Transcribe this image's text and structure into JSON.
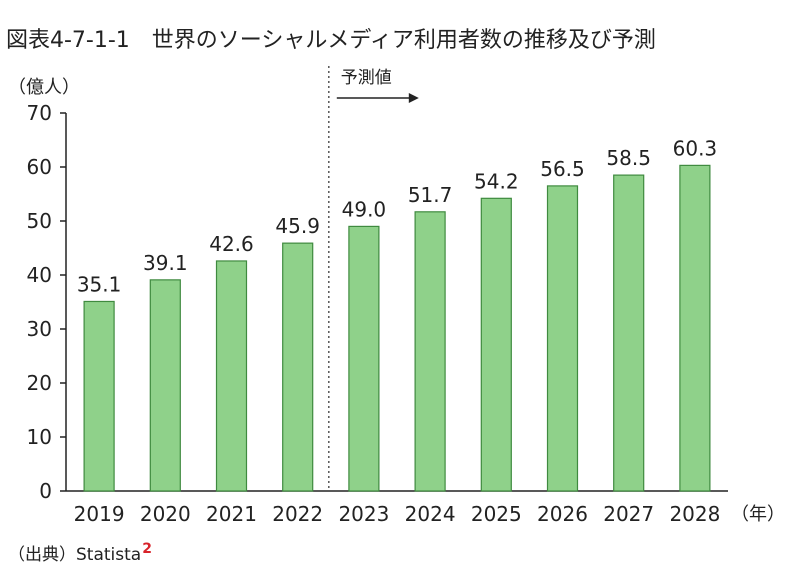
{
  "title": "図表4-7-1-1　世界のソーシャルメディア利用者数の推移及び予測",
  "source": {
    "label": "（出典）Statista",
    "footnote": "2"
  },
  "colors": {
    "bar_fill": "#8fd18a",
    "bar_stroke": "#3f8a3f",
    "axis": "#222222",
    "text": "#222222",
    "footnote": "#d8232a"
  },
  "chart_data": {
    "type": "bar",
    "categories": [
      "2019",
      "2020",
      "2021",
      "2022",
      "2023",
      "2024",
      "2025",
      "2026",
      "2027",
      "2028"
    ],
    "values": [
      35.1,
      39.1,
      42.6,
      45.9,
      49.0,
      51.7,
      54.2,
      56.5,
      58.5,
      60.3
    ],
    "value_labels": [
      "35.1",
      "39.1",
      "42.6",
      "45.9",
      "49.0",
      "51.7",
      "54.2",
      "56.5",
      "58.5",
      "60.3"
    ],
    "ylabel": "（億人）",
    "xunit": "（年）",
    "ylim": [
      0,
      70
    ],
    "yticks": [
      0,
      10,
      20,
      30,
      40,
      50,
      60,
      70
    ],
    "grid": false,
    "forecast_label": "予測値",
    "forecast_start": "2023"
  }
}
